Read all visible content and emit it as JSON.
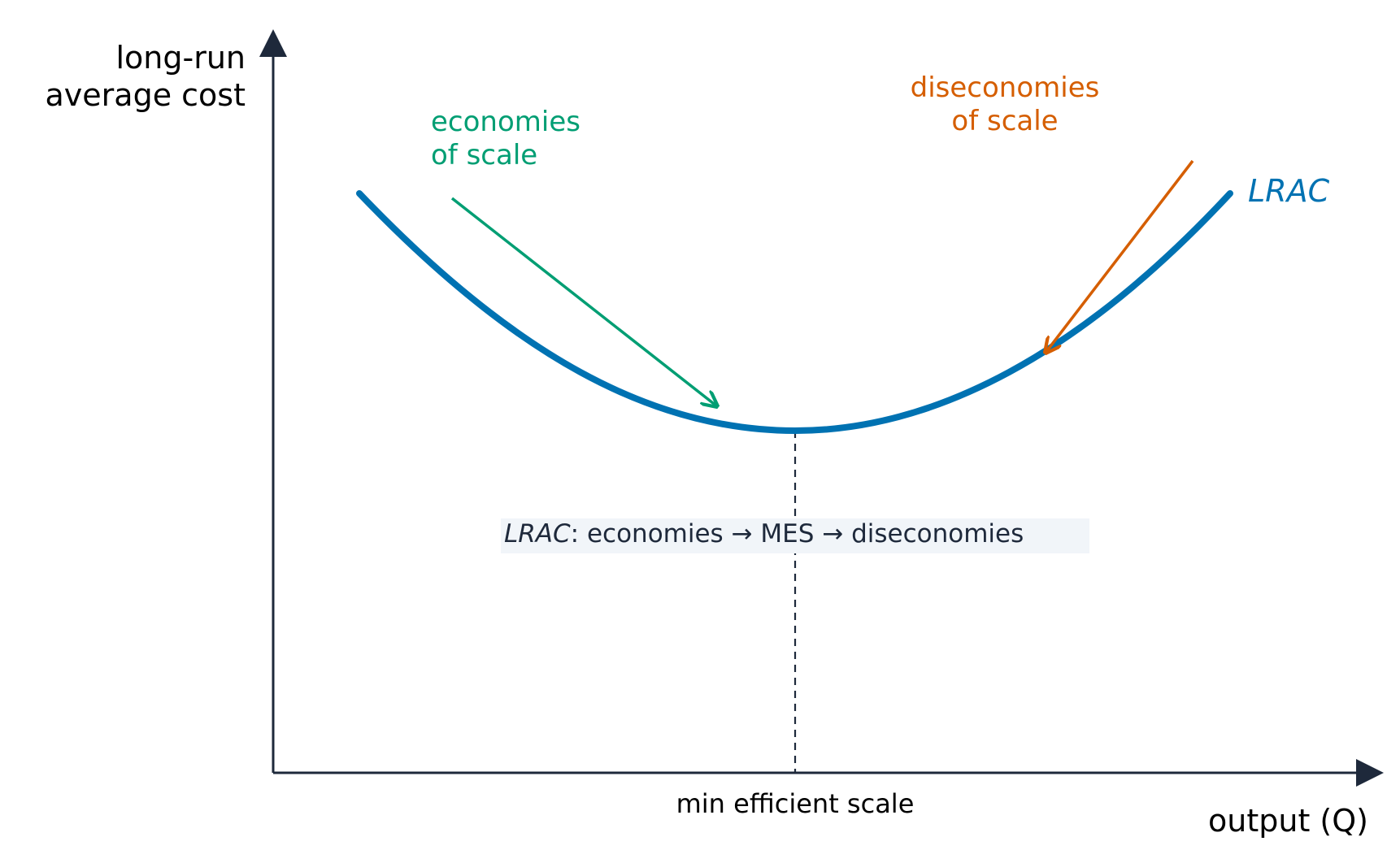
{
  "axes": {
    "y_label_line1": "long-run",
    "y_label_line2": "average cost",
    "x_label": "output (Q)"
  },
  "curve": {
    "label": "LRAC",
    "color": "#0072b2"
  },
  "annotations": {
    "economies_line1": "economies",
    "economies_line2": "of scale",
    "economies_color": "#009e73",
    "diseconomies_line1": "diseconomies",
    "diseconomies_line2": "of scale",
    "diseconomies_color": "#d55e00",
    "mes_label": "min efficient scale",
    "summary_lrac": "LRAC",
    "summary_rest": ": economies → MES → diseconomies"
  },
  "colors": {
    "axis": "#1e293b",
    "summary_bg": "#f1f5f9"
  }
}
